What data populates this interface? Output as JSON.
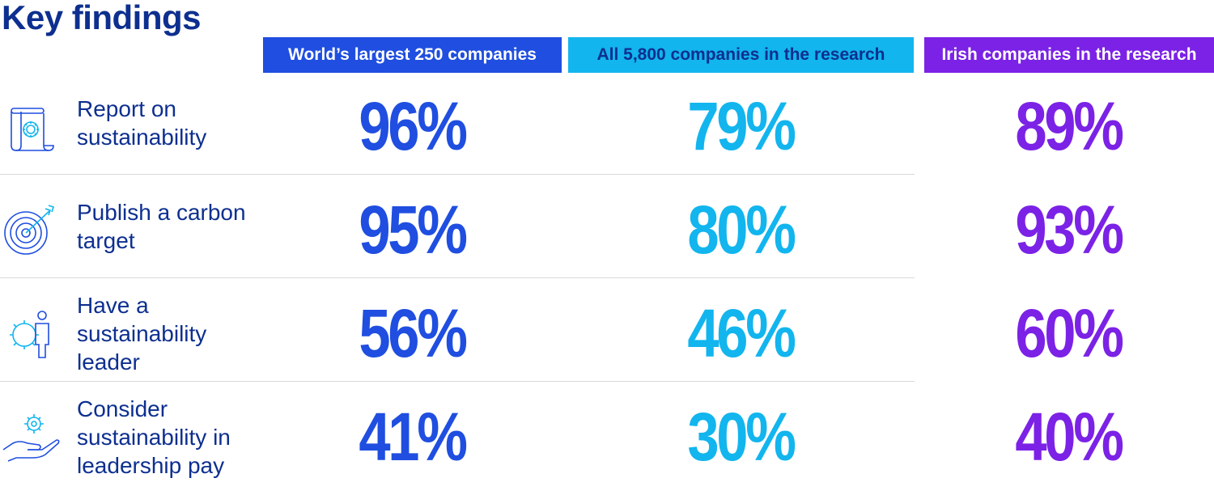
{
  "title": "Key findings",
  "colors": {
    "title": "#0d2f8f",
    "series": [
      "#1f4ee0",
      "#12b5ee",
      "#7b22e6"
    ],
    "header_bg": [
      "#1f4ee0",
      "#12b5ee",
      "#7b22e6"
    ],
    "icon": "#1f4ee0",
    "icon_accent": "#12b5ee"
  },
  "chart_data": {
    "type": "table",
    "series": [
      {
        "name": "World’s largest 250 companies",
        "values": [
          96,
          95,
          56,
          41
        ]
      },
      {
        "name": "All 5,800 companies in the research",
        "values": [
          79,
          80,
          46,
          30
        ]
      },
      {
        "name": "Irish companies in the research",
        "values": [
          89,
          93,
          60,
          40
        ]
      }
    ],
    "categories": [
      "Report on sustainability",
      "Publish a carbon target",
      "Have a sustainability leader",
      "Consider sustainability in leadership pay"
    ],
    "display_values": [
      [
        "96%",
        "79%",
        "89%"
      ],
      [
        "95%",
        "80%",
        "93%"
      ],
      [
        "56%",
        "46%",
        "60%"
      ],
      [
        "41%",
        "30%",
        "40%"
      ]
    ],
    "unit": "%"
  },
  "rows": [
    {
      "icon": "document-gear-icon",
      "label_lines": [
        "Report on",
        "sustainability"
      ]
    },
    {
      "icon": "target-arrow-icon",
      "label_lines": [
        "Publish a carbon",
        "target"
      ]
    },
    {
      "icon": "gear-person-icon",
      "label_lines": [
        "Have a",
        "sustainability",
        "leader"
      ]
    },
    {
      "icon": "hand-gear-icon",
      "label_lines": [
        "Consider",
        "sustainability in",
        "leadership pay"
      ]
    }
  ]
}
